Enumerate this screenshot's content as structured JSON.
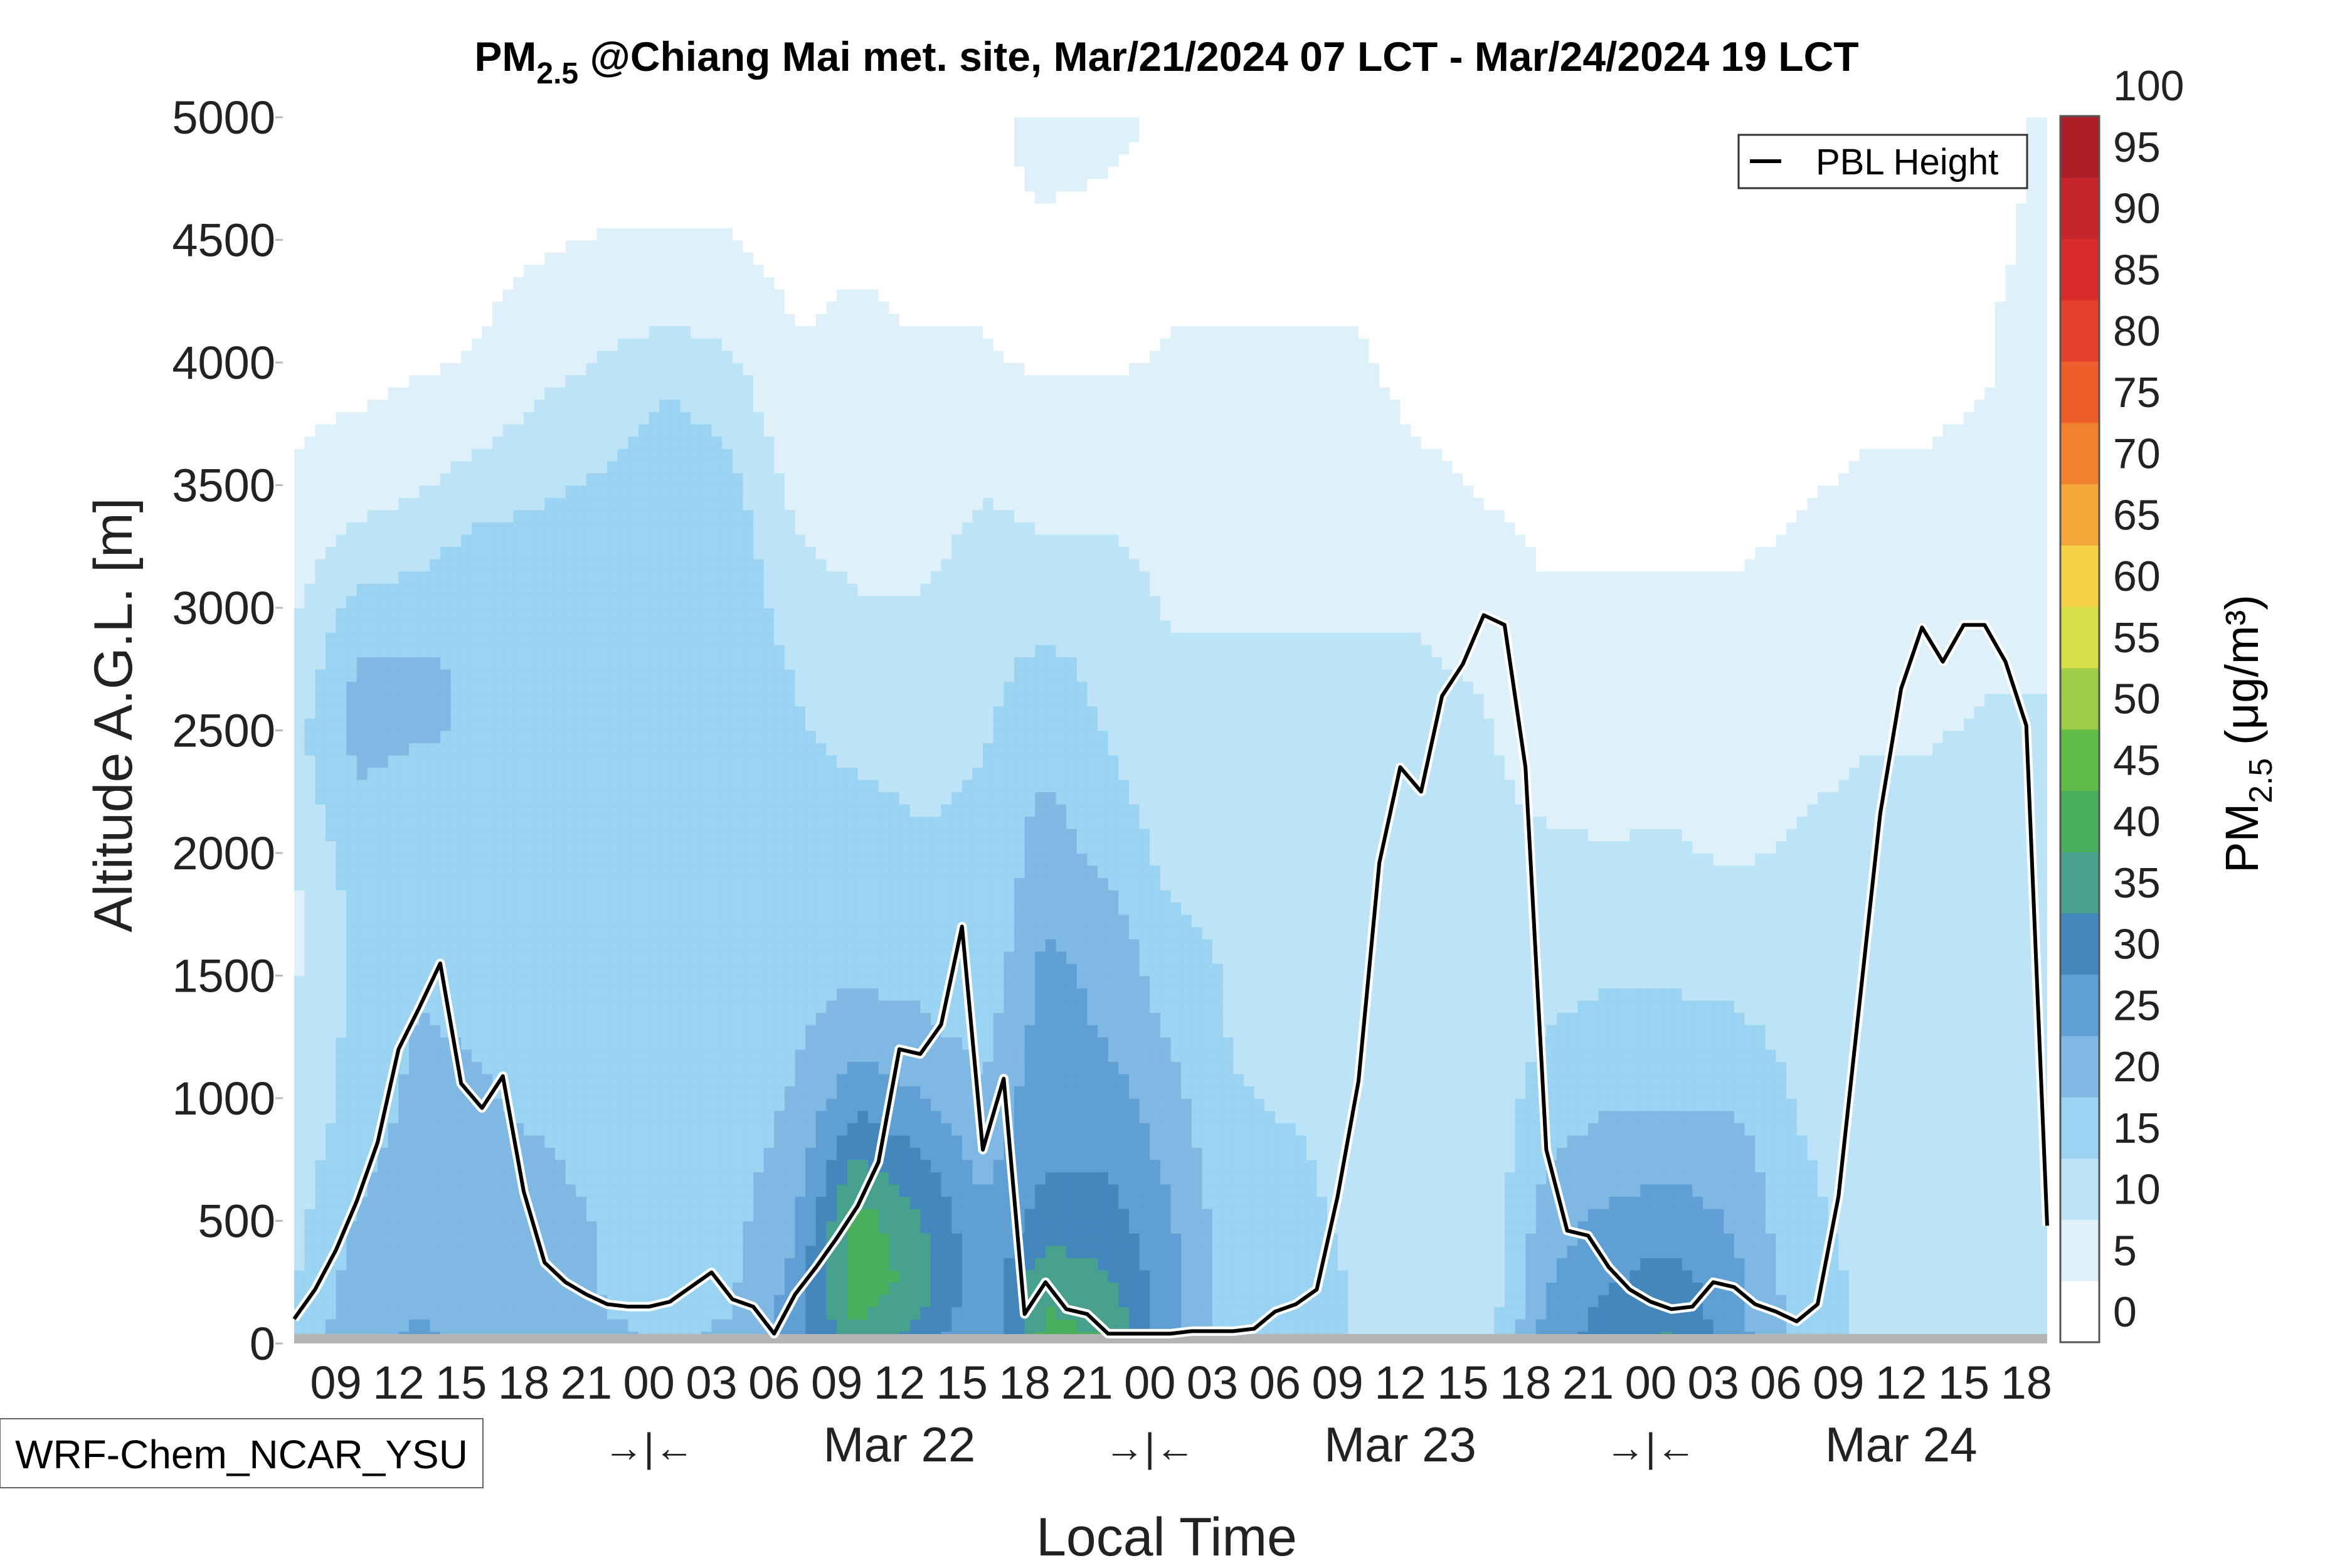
{
  "chart_data": {
    "type": "heatmap",
    "title": {
      "main": "PM",
      "sub": "2.5",
      "rest": " @Chiang Mai met. site, Mar/21/2024 07 LCT - Mar/24/2024 19 LCT"
    },
    "xlabel": "Local Time",
    "ylabel": "Altitude A.G.L. [m]",
    "ylim": [
      0,
      5000
    ],
    "y_ticks": [
      "0",
      "500",
      "1000",
      "1500",
      "2000",
      "2500",
      "3000",
      "3500",
      "4000",
      "4500",
      "5000"
    ],
    "x_range_hours": [
      7,
      91
    ],
    "x_ticks": [
      "09",
      "12",
      "15",
      "18",
      "21",
      "00",
      "03",
      "06",
      "09",
      "12",
      "15",
      "18",
      "21",
      "00",
      "03",
      "06",
      "09",
      "12",
      "15",
      "18",
      "21",
      "00",
      "03",
      "06",
      "09",
      "12",
      "15",
      "18"
    ],
    "day_separator": "→|←",
    "day_labels": [
      "Mar 22",
      "Mar 23",
      "Mar 24"
    ],
    "legend_entry": "PBL Height",
    "model_label": "WRF-Chem_NCAR_YSU",
    "colorbar": {
      "label_main": "PM",
      "label_sub": "2.5",
      "label_units": " (μg/m³)",
      "range": [
        0,
        100
      ],
      "tick_labels": [
        "0",
        "5",
        "10",
        "15",
        "20",
        "25",
        "30",
        "35",
        "40",
        "45",
        "50",
        "55",
        "60",
        "65",
        "70",
        "75",
        "80",
        "85",
        "90",
        "95",
        "100"
      ],
      "colors": [
        "#ffffff",
        "#def0fa",
        "#bde3f6",
        "#9bd3f2",
        "#7fb8e2",
        "#5f9fd4",
        "#4487bd",
        "#48a08e",
        "#4aae5f",
        "#62bd48",
        "#9fcc46",
        "#d8de48",
        "#f5d148",
        "#f6a73c",
        "#f2812f",
        "#ec5f2c",
        "#e4402c",
        "#d82c2c",
        "#c5252b",
        "#ad1f26",
        "#8c1519"
      ]
    },
    "pbl_height": {
      "x_hours": [
        7,
        8,
        9,
        10,
        11,
        12,
        13,
        14,
        15,
        16,
        17,
        18,
        19,
        20,
        21,
        22,
        23,
        24,
        25,
        26,
        27,
        28,
        29,
        30,
        31,
        32,
        33,
        34,
        35,
        36,
        37,
        38,
        39,
        40,
        41,
        42,
        43,
        44,
        45,
        46,
        47,
        48,
        49,
        50,
        51,
        52,
        53,
        54,
        55,
        56,
        57,
        58,
        59,
        60,
        61,
        62,
        63,
        64,
        65,
        66,
        67,
        68,
        69,
        70,
        71,
        72,
        73,
        74,
        75,
        76,
        77,
        78,
        79,
        80,
        81,
        82,
        83,
        84,
        85,
        86,
        87,
        88,
        89,
        90,
        91
      ],
      "y_m": [
        100,
        220,
        380,
        580,
        820,
        1200,
        1370,
        1550,
        1060,
        960,
        1090,
        620,
        330,
        250,
        200,
        160,
        150,
        150,
        170,
        230,
        290,
        180,
        150,
        40,
        200,
        310,
        430,
        560,
        740,
        1200,
        1180,
        1300,
        1700,
        790,
        1080,
        120,
        250,
        140,
        120,
        40,
        40,
        40,
        40,
        50,
        50,
        50,
        60,
        130,
        160,
        220,
        600,
        1070,
        1960,
        2350,
        2250,
        2640,
        2770,
        2970,
        2930,
        2350,
        790,
        460,
        440,
        310,
        220,
        170,
        140,
        150,
        250,
        230,
        160,
        130,
        90,
        160,
        600,
        1380,
        2160,
        2670,
        2920,
        2780,
        2930,
        2930,
        2780,
        2520,
        480
      ]
    },
    "pm25_field": {
      "x_hours": [
        7,
        10,
        13,
        16,
        19,
        22,
        25,
        28,
        31,
        34,
        37,
        40,
        43,
        46,
        49,
        52,
        55,
        58,
        61,
        64,
        67,
        70,
        73,
        76,
        79,
        82,
        85,
        88,
        91
      ],
      "y_m": [
        0,
        250,
        500,
        750,
        1000,
        1250,
        1500,
        1750,
        2000,
        2250,
        2500,
        2750,
        3000,
        3250,
        3500,
        3750,
        4000,
        4250,
        4500,
        4750,
        5000
      ],
      "values_ugm3": [
        [
          13,
          12,
          11,
          10,
          9,
          8,
          7,
          6,
          8,
          10,
          11,
          9,
          7,
          5,
          3,
          2,
          1,
          0,
          0,
          0,
          0
        ],
        [
          22,
          20,
          18,
          16,
          14,
          14,
          14,
          14,
          15,
          17,
          19,
          18,
          14,
          9,
          5,
          3,
          1,
          0,
          0,
          0,
          0
        ],
        [
          23,
          22,
          21,
          20,
          19,
          18,
          17,
          15,
          14,
          16,
          18,
          18,
          15,
          11,
          7,
          4,
          2,
          0,
          0,
          0,
          0
        ],
        [
          22,
          21,
          20,
          19,
          18,
          17,
          16,
          15,
          13,
          15,
          17,
          17,
          16,
          14,
          10,
          6,
          3,
          2,
          0,
          0,
          0
        ],
        [
          20,
          20,
          19,
          18,
          16,
          14,
          13,
          13,
          13,
          14,
          15,
          15,
          15,
          14,
          12,
          9,
          6,
          4,
          2,
          0,
          0
        ],
        [
          18,
          17,
          17,
          16,
          14,
          13,
          13,
          13,
          13,
          14,
          15,
          15,
          15,
          14,
          13,
          11,
          8,
          5,
          3,
          0,
          0
        ],
        [
          17,
          17,
          16,
          15,
          14,
          14,
          14,
          14,
          14,
          15,
          16,
          17,
          17,
          17,
          16,
          14,
          10,
          6,
          3,
          0,
          0
        ],
        [
          18,
          17,
          16,
          15,
          14,
          14,
          14,
          14,
          14,
          15,
          16,
          17,
          16,
          15,
          14,
          11,
          8,
          5,
          3,
          0,
          0
        ],
        [
          25,
          24,
          22,
          20,
          18,
          17,
          16,
          15,
          14,
          14,
          13,
          12,
          10,
          8,
          6,
          4,
          3,
          2,
          0,
          0,
          0
        ],
        [
          36,
          42,
          40,
          33,
          26,
          20,
          17,
          15,
          14,
          13,
          11,
          9,
          8,
          6,
          5,
          4,
          3,
          3,
          1,
          0,
          0
        ],
        [
          30,
          35,
          33,
          28,
          23,
          19,
          16,
          14,
          13,
          12,
          10,
          9,
          8,
          6,
          5,
          4,
          3,
          2,
          1,
          0,
          0
        ],
        [
          22,
          24,
          23,
          21,
          18,
          16,
          14,
          13,
          13,
          13,
          12,
          11,
          10,
          9,
          7,
          5,
          3,
          2,
          1,
          0,
          0
        ],
        [
          40,
          36,
          30,
          27,
          26,
          25,
          24,
          22,
          20,
          18,
          16,
          14,
          11,
          8,
          6,
          4,
          2,
          1,
          0,
          4,
          6
        ],
        [
          38,
          33,
          30,
          27,
          25,
          22,
          21,
          19,
          16,
          14,
          12,
          11,
          10,
          8,
          6,
          4,
          2,
          1,
          0,
          2,
          6
        ],
        [
          24,
          24,
          23,
          21,
          19,
          17,
          15,
          13,
          11,
          10,
          9,
          8,
          7,
          6,
          5,
          4,
          3,
          2,
          1,
          0,
          0
        ],
        [
          14,
          14,
          14,
          13,
          13,
          12,
          12,
          11,
          11,
          10,
          9,
          8,
          7,
          6,
          5,
          4,
          3,
          2,
          1,
          0,
          0
        ],
        [
          16,
          15,
          14,
          13,
          12,
          11,
          11,
          10,
          10,
          9,
          9,
          8,
          7,
          6,
          5,
          4,
          3,
          2,
          0,
          0,
          0
        ],
        [
          12,
          12,
          11,
          11,
          11,
          11,
          11,
          10,
          10,
          9,
          9,
          8,
          7,
          6,
          5,
          4,
          3,
          2,
          0,
          0,
          0
        ],
        [
          10,
          10,
          10,
          10,
          10,
          10,
          10,
          10,
          9,
          9,
          9,
          8,
          7,
          6,
          4,
          2,
          1,
          0,
          0,
          0,
          0
        ],
        [
          9,
          9,
          9,
          9,
          9,
          9,
          9,
          9,
          8,
          8,
          8,
          7,
          6,
          4,
          2,
          1,
          0,
          0,
          0,
          0,
          0
        ],
        [
          25,
          22,
          20,
          17,
          15,
          13,
          11,
          9,
          8,
          7,
          5,
          4,
          3,
          2,
          1,
          0,
          0,
          0,
          0,
          0,
          0
        ],
        [
          31,
          27,
          24,
          20,
          17,
          14,
          12,
          10,
          8,
          6,
          5,
          4,
          3,
          2,
          1,
          0,
          0,
          0,
          0,
          0,
          0
        ],
        [
          33,
          30,
          25,
          21,
          17,
          14,
          12,
          10,
          8,
          7,
          5,
          4,
          3,
          2,
          1,
          0,
          0,
          0,
          0,
          0,
          0
        ],
        [
          25,
          24,
          22,
          20,
          17,
          14,
          11,
          9,
          7,
          6,
          5,
          4,
          3,
          2,
          1,
          0,
          0,
          0,
          0,
          0,
          0
        ],
        [
          16,
          15,
          14,
          13,
          12,
          11,
          10,
          9,
          8,
          7,
          6,
          5,
          4,
          3,
          2,
          1,
          0,
          0,
          0,
          0,
          0
        ],
        [
          12,
          12,
          11,
          11,
          10,
          10,
          10,
          9,
          9,
          8,
          7,
          6,
          5,
          4,
          3,
          2,
          1,
          0,
          0,
          0,
          0
        ],
        [
          9,
          9,
          9,
          9,
          9,
          9,
          9,
          9,
          8,
          8,
          7,
          6,
          5,
          4,
          3,
          2,
          1,
          0,
          0,
          0,
          0
        ],
        [
          9,
          9,
          9,
          9,
          9,
          9,
          9,
          9,
          9,
          9,
          8,
          7,
          6,
          5,
          4,
          3,
          2,
          2,
          1,
          0,
          0
        ],
        [
          11,
          11,
          11,
          11,
          11,
          10,
          10,
          10,
          10,
          9,
          8,
          7,
          6,
          5,
          4,
          4,
          4,
          4,
          4,
          4,
          4
        ]
      ]
    }
  }
}
